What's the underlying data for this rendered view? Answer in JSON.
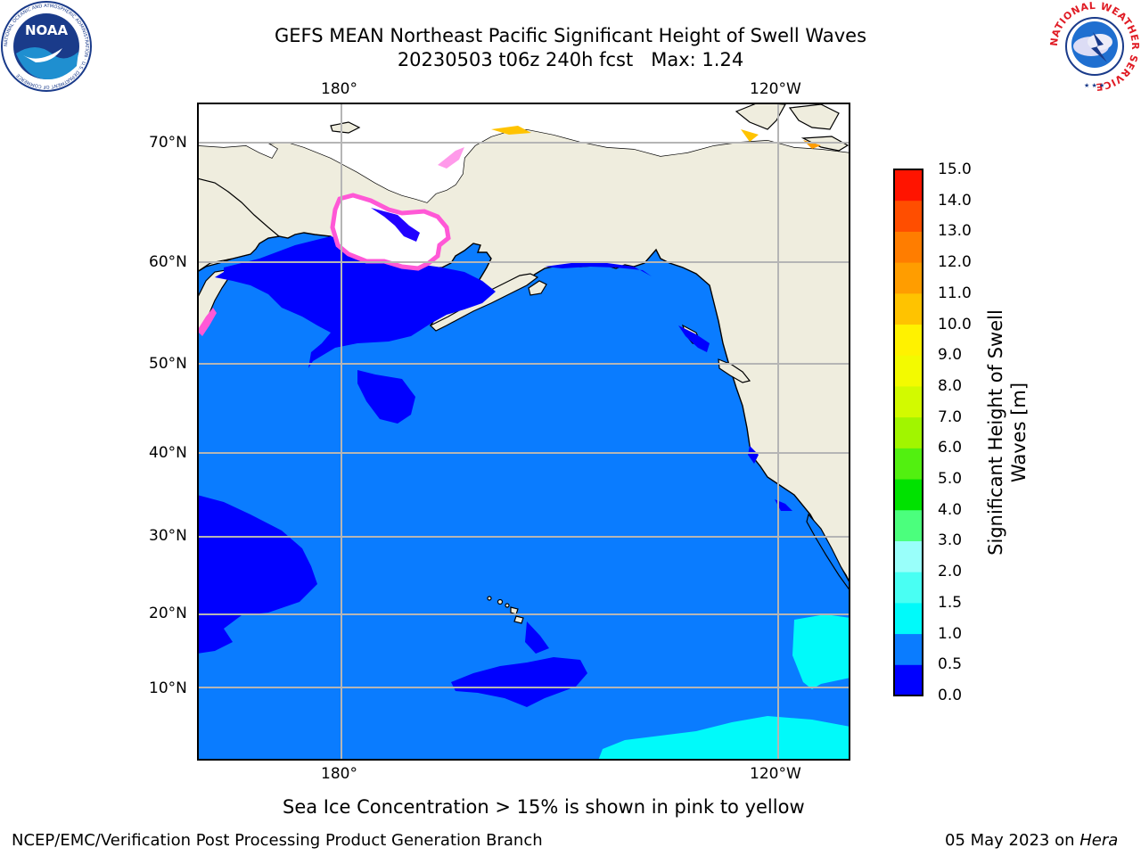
{
  "title": {
    "line1": "GEFS MEAN Northeast Pacific Significant Height of Swell Waves",
    "date_run": "20230503 t06z 240h fcst",
    "max_label": "Max: 1.24"
  },
  "logos": {
    "left": {
      "icon": "noaa-logo",
      "text": "NOAA",
      "ring_text": "NATIONAL OCEANIC AND ATMOSPHERIC ADMINISTRATION · U.S. DEPARTMENT OF COMMERCE"
    },
    "right": {
      "icon": "nws-logo",
      "ring_text": "NATIONAL WEATHER SERVICE"
    }
  },
  "map": {
    "lon_labels": [
      "180°",
      "120°W"
    ],
    "lat_labels": [
      "70°N",
      "60°N",
      "50°N",
      "40°N",
      "30°N",
      "20°N",
      "10°N"
    ],
    "colors": {
      "land": "#efedde",
      "ocean_low": "#0000ff",
      "ocean_mid": "#0a7cff",
      "ocean_high": "#00fafa",
      "grid": "#b5b5b5",
      "ice": "#ff58d6"
    }
  },
  "colorbar": {
    "ticks": [
      "0.0",
      "0.5",
      "1.0",
      "1.5",
      "2.0",
      "3.0",
      "4.0",
      "5.0",
      "6.0",
      "7.0",
      "8.0",
      "9.0",
      "10.0",
      "11.0",
      "12.0",
      "13.0",
      "14.0",
      "15.0"
    ],
    "colors": [
      "#0000ff",
      "#0a7cff",
      "#00fafa",
      "#49fff3",
      "#99fffa",
      "#4bff7d",
      "#00e200",
      "#52f010",
      "#a1f500",
      "#d2fa00",
      "#f3fa00",
      "#fff200",
      "#ffc300",
      "#ff9d00",
      "#ff7d00",
      "#ff4e00",
      "#ff1400"
    ],
    "label_line1": "Significant Height of Swell",
    "label_line2": "Waves [m]"
  },
  "ice_note": "Sea Ice Concentration > 15% is shown in pink to yellow",
  "footer": {
    "left": "NCEP/EMC/Verification Post Processing Product Generation Branch",
    "right_date": "05 May 2023 on",
    "right_host": "Hera"
  }
}
